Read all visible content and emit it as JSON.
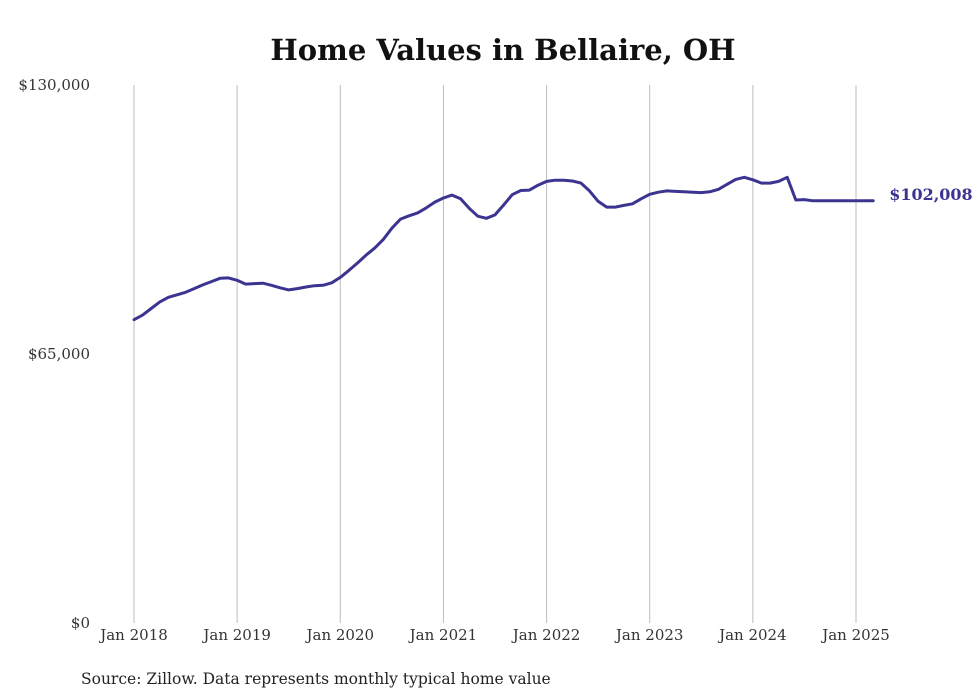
{
  "chart_data": {
    "type": "line",
    "title": "Home Values in Bellaire, OH",
    "xlabel": "",
    "ylabel": "",
    "ylim": [
      0,
      130000
    ],
    "yticks": [
      0,
      65000,
      130000
    ],
    "ytick_labels": [
      "$0",
      "$65,000",
      "$130,000"
    ],
    "xlim": [
      "2018-01",
      "2025-03"
    ],
    "xticks": [
      "2018-01",
      "2019-01",
      "2020-01",
      "2021-01",
      "2022-01",
      "2023-01",
      "2024-01",
      "2025-01"
    ],
    "xtick_labels": [
      "Jan 2018",
      "Jan 2019",
      "Jan 2020",
      "Jan 2021",
      "Jan 2022",
      "Jan 2023",
      "Jan 2024",
      "Jan 2025"
    ],
    "grid": "vertical",
    "legend": "none",
    "color": "#3b3491",
    "end_label": "$102,008",
    "series": [
      {
        "x": [
          "2018-01",
          "2018-02",
          "2018-03",
          "2018-04",
          "2018-05",
          "2018-06",
          "2018-07",
          "2018-08",
          "2018-09",
          "2018-10",
          "2018-11",
          "2018-12",
          "2019-01",
          "2019-02",
          "2019-03",
          "2019-04",
          "2019-05",
          "2019-06",
          "2019-07",
          "2019-08",
          "2019-09",
          "2019-10",
          "2019-11",
          "2019-12",
          "2020-01",
          "2020-02",
          "2020-03",
          "2020-04",
          "2020-05",
          "2020-06",
          "2020-07",
          "2020-08",
          "2020-09",
          "2020-10",
          "2020-11",
          "2020-12",
          "2021-01",
          "2021-02",
          "2021-03",
          "2021-04",
          "2021-05",
          "2021-06",
          "2021-07",
          "2021-08",
          "2021-09",
          "2021-10",
          "2021-11",
          "2021-12",
          "2022-01",
          "2022-02",
          "2022-03",
          "2022-04",
          "2022-05",
          "2022-06",
          "2022-07",
          "2022-08",
          "2022-09",
          "2022-10",
          "2022-11",
          "2022-12",
          "2023-01",
          "2023-02",
          "2023-03",
          "2023-04",
          "2023-05",
          "2023-06",
          "2023-07",
          "2023-08",
          "2023-09",
          "2023-10",
          "2023-11",
          "2023-12",
          "2024-01",
          "2024-02",
          "2024-03",
          "2024-04",
          "2024-05",
          "2024-06",
          "2024-07",
          "2024-08",
          "2024-09",
          "2024-10",
          "2024-11",
          "2024-12",
          "2025-01",
          "2025-02",
          "2025-03"
        ],
        "values": [
          73300,
          74400,
          76000,
          77600,
          78700,
          79300,
          79900,
          80800,
          81700,
          82500,
          83300,
          83400,
          82800,
          81900,
          82000,
          82100,
          81600,
          81000,
          80500,
          80800,
          81200,
          81500,
          81600,
          82200,
          83500,
          85200,
          87000,
          88900,
          90600,
          92700,
          95400,
          97600,
          98400,
          99100,
          100300,
          101700,
          102700,
          103400,
          102500,
          100200,
          98300,
          97800,
          98600,
          101000,
          103500,
          104500,
          104600,
          105800,
          106700,
          107000,
          107000,
          106800,
          106300,
          104400,
          101900,
          100500,
          100500,
          100900,
          101300,
          102500,
          103600,
          104100,
          104400,
          104300,
          104200,
          104100,
          104000,
          104200,
          104800,
          106000,
          107200,
          107700,
          107100,
          106300,
          106300,
          106700,
          107700,
          102200,
          102300,
          102008,
          102008,
          102008,
          102008,
          102008,
          102008,
          102008,
          102008
        ]
      }
    ]
  },
  "source": "Source: Zillow. Data represents monthly typical home value"
}
